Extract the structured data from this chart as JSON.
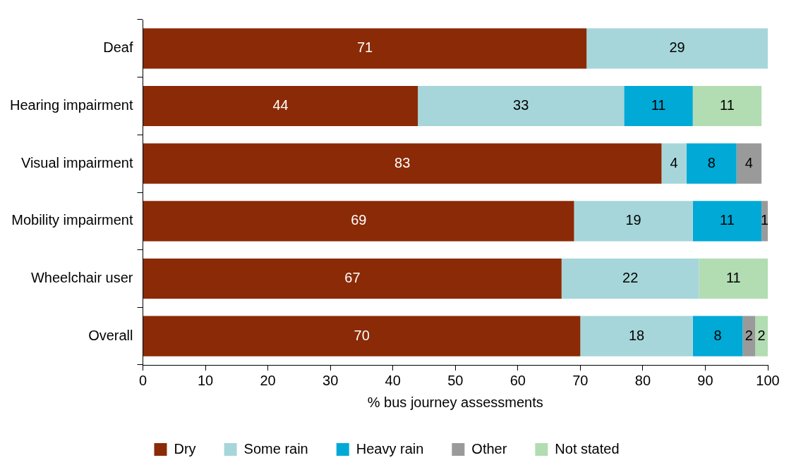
{
  "chart_data": {
    "type": "bar",
    "orientation": "horizontal",
    "stacked": true,
    "xlabel": "% bus journey assessments",
    "categories": [
      "Deaf",
      "Hearing impairment",
      "Visual impairment",
      "Mobility impairment",
      "Wheelchair user",
      "Overall"
    ],
    "series": [
      {
        "name": "Dry",
        "color": "#8b2a06",
        "values": [
          71,
          44,
          83,
          69,
          67,
          70
        ]
      },
      {
        "name": "Some rain",
        "color": "#a6d6da",
        "values": [
          29,
          33,
          4,
          19,
          22,
          18
        ]
      },
      {
        "name": "Heavy rain",
        "color": "#00a9d6",
        "values": [
          null,
          11,
          8,
          11,
          null,
          8
        ]
      },
      {
        "name": "Other",
        "color": "#9a9a9a",
        "values": [
          null,
          null,
          4,
          1,
          null,
          2
        ]
      },
      {
        "name": "Not stated",
        "color": "#b2dcb2",
        "values": [
          null,
          11,
          null,
          null,
          11,
          2
        ]
      }
    ],
    "xlim": [
      0,
      100
    ],
    "xticks": [
      0,
      10,
      20,
      30,
      40,
      50,
      60,
      70,
      80,
      90,
      100
    ],
    "grid": false,
    "legend": "bottom",
    "data_labels": true
  }
}
